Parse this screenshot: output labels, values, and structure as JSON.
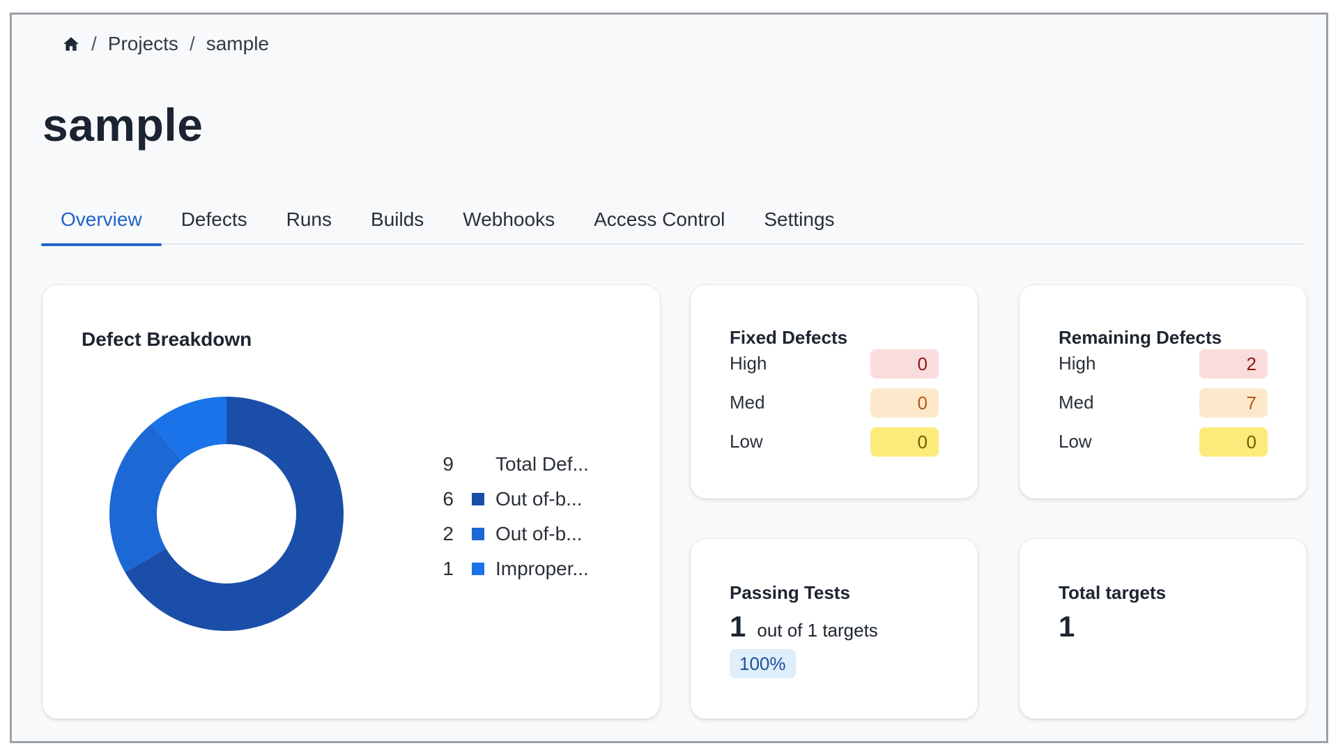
{
  "breadcrumb": {
    "home_icon": "home-icon",
    "separator": "/",
    "items": [
      "Projects",
      "sample"
    ]
  },
  "page": {
    "title": "sample"
  },
  "tabs": [
    {
      "label": "Overview",
      "active": true
    },
    {
      "label": "Defects",
      "active": false
    },
    {
      "label": "Runs",
      "active": false
    },
    {
      "label": "Builds",
      "active": false
    },
    {
      "label": "Webhooks",
      "active": false
    },
    {
      "label": "Access Control",
      "active": false
    },
    {
      "label": "Settings",
      "active": false
    }
  ],
  "colors": {
    "accent": "#1f63c7",
    "donut_primary": "#1a4ea8",
    "donut_secondary": "#1c68d4",
    "donut_tertiary": "#1a73e8",
    "high_bg": "#fbdcdc",
    "med_bg": "#fde8cc",
    "low_bg": "#fbeb7a",
    "pct_bg": "#deeefa"
  },
  "defect_breakdown": {
    "title": "Defect Breakdown",
    "legend": [
      {
        "count": "9",
        "label": "Total Def...",
        "swatch": ""
      },
      {
        "count": "6",
        "label": "Out of-b...",
        "swatch": "#1a4ea8"
      },
      {
        "count": "2",
        "label": "Out of-b...",
        "swatch": "#1c68d4"
      },
      {
        "count": "1",
        "label": "Improper...",
        "swatch": "#1a73e8"
      }
    ]
  },
  "chart_data": {
    "type": "pie",
    "donut": true,
    "slices": [
      {
        "label": "Out of-b...",
        "value": 6,
        "color": "#1a4ea8"
      },
      {
        "label": "Out of-b...",
        "value": 2,
        "color": "#1c68d4"
      },
      {
        "label": "Improper...",
        "value": 1,
        "color": "#1a73e8"
      }
    ],
    "total": 9
  },
  "fixed_defects": {
    "title": "Fixed Defects",
    "rows": [
      {
        "label": "High",
        "value": "0",
        "level": "high"
      },
      {
        "label": "Med",
        "value": "0",
        "level": "med"
      },
      {
        "label": "Low",
        "value": "0",
        "level": "low"
      }
    ]
  },
  "remaining_defects": {
    "title": "Remaining Defects",
    "rows": [
      {
        "label": "High",
        "value": "2",
        "level": "high"
      },
      {
        "label": "Med",
        "value": "7",
        "level": "med"
      },
      {
        "label": "Low",
        "value": "0",
        "level": "low"
      }
    ]
  },
  "passing_tests": {
    "title": "Passing Tests",
    "count": "1",
    "text": "out of 1 targets",
    "percent": "100%"
  },
  "total_targets": {
    "title": "Total targets",
    "count": "1"
  }
}
